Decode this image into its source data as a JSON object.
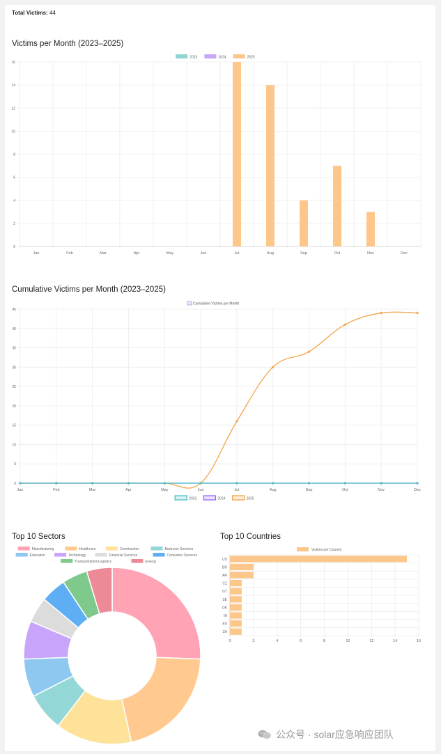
{
  "total": {
    "label": "Total Victims:",
    "value": "44"
  },
  "monthly": {
    "title": "Victims per Month (2023–2025)",
    "chart_data": {
      "type": "bar",
      "categories": [
        "Jan",
        "Feb",
        "Mar",
        "Apr",
        "May",
        "Jun",
        "Jul",
        "Aug",
        "Sep",
        "Oct",
        "Nov",
        "Dec"
      ],
      "series": [
        {
          "name": "2023",
          "color": "#8fd6d3",
          "values": [
            0,
            0,
            0,
            0,
            0,
            0,
            0,
            0,
            0,
            0,
            0,
            0
          ]
        },
        {
          "name": "2024",
          "color": "#c7a6f7",
          "values": [
            0,
            0,
            0,
            0,
            0,
            0,
            0,
            0,
            0,
            0,
            0,
            0
          ]
        },
        {
          "name": "2025",
          "color": "#fdc68b",
          "values": [
            0,
            0,
            0,
            0,
            0,
            0,
            16,
            14,
            4,
            7,
            3,
            0
          ]
        }
      ],
      "yticks": [
        "0",
        "2",
        "4",
        "6",
        "8",
        "10",
        "12",
        "14",
        "16"
      ],
      "ylim": [
        0,
        16
      ]
    }
  },
  "cumulative": {
    "title": "Cumulative Victims per Month (2023–2025)",
    "chart_data": {
      "type": "line",
      "categories": [
        "Jan",
        "Feb",
        "Mar",
        "Apr",
        "May",
        "Jun",
        "Jul",
        "Aug",
        "Sep",
        "Oct",
        "Nov",
        "Dec"
      ],
      "dataset_label": "Cumulative Victims per Month",
      "series": [
        {
          "name": "2023",
          "color": "#4bc0c0",
          "values": [
            0,
            0,
            0,
            0,
            0,
            0,
            0,
            0,
            0,
            0,
            0,
            0
          ]
        },
        {
          "name": "2024",
          "color": "#9966ff",
          "values": [
            0,
            0,
            0,
            0,
            0,
            0,
            0,
            0,
            0,
            0,
            0,
            0
          ]
        },
        {
          "name": "2025",
          "color": "#f4a348",
          "values": [
            0,
            0,
            0,
            0,
            0,
            0,
            16,
            30,
            34,
            41,
            44,
            44
          ]
        }
      ],
      "yticks": [
        "0",
        "5",
        "10",
        "15",
        "20",
        "25",
        "30",
        "35",
        "40",
        "45"
      ],
      "ylim": [
        0,
        45
      ]
    }
  },
  "sectors": {
    "title": "Top 10 Sectors",
    "chart_data": {
      "type": "pie",
      "labels": [
        "Manufacturing",
        "Healthcare",
        "Construction",
        "Business Services",
        "Education",
        "Technology",
        "Financial Services",
        "Consumer Services",
        "Transportation/Logistics",
        "Energy"
      ],
      "values": [
        11,
        9,
        6,
        3,
        3,
        3,
        2,
        2,
        2,
        2
      ],
      "colors": [
        "#ffa3b5",
        "#ffc98f",
        "#ffe29a",
        "#93d8d6",
        "#8ec7f0",
        "#c8a5fb",
        "#dcdcdd",
        "#5eaef3",
        "#7fc98d",
        "#ec8b97"
      ]
    }
  },
  "countries": {
    "title": "Top 10 Countries",
    "chart_data": {
      "type": "bar",
      "orientation": "horizontal",
      "dataset_label": "Victims per Country",
      "color": "#fdc68b",
      "categories": [
        "US",
        "BR",
        "AR",
        "CZ",
        "GT",
        "SE",
        "DK",
        "IN",
        "ES",
        "ZA"
      ],
      "values": [
        15,
        2,
        2,
        1,
        1,
        1,
        1,
        1,
        1,
        1
      ],
      "xticks": [
        "0",
        "2",
        "4",
        "6",
        "8",
        "10",
        "12",
        "14",
        "16"
      ],
      "xlim": [
        0,
        16
      ]
    }
  },
  "watermark": {
    "text": "公众号 · solar应急响应团队"
  }
}
